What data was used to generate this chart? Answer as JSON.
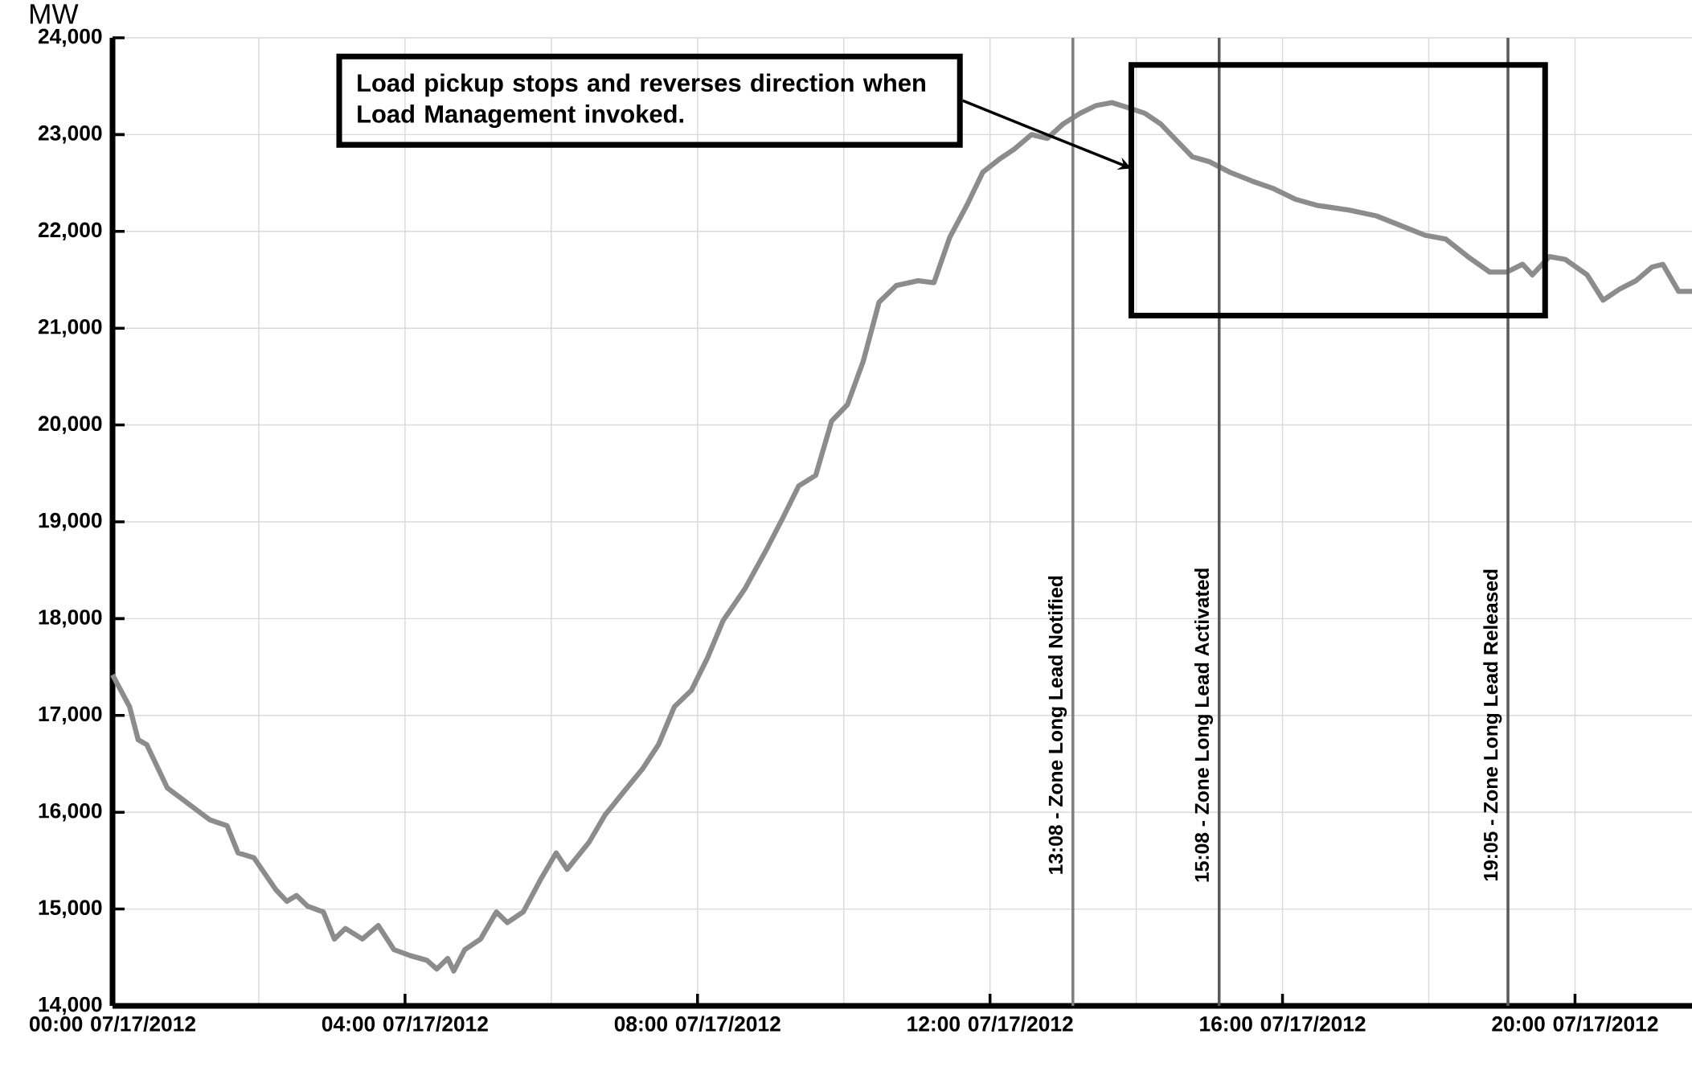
{
  "chart_data": {
    "type": "line",
    "ylabel": "MW",
    "x": [
      "2012-07-17T00:00",
      "2012-07-17T00:14",
      "2012-07-17T00:21",
      "2012-07-17T00:28",
      "2012-07-17T00:45",
      "2012-07-17T01:03",
      "2012-07-17T01:20",
      "2012-07-17T01:34",
      "2012-07-17T01:43",
      "2012-07-17T01:56",
      "2012-07-17T02:14",
      "2012-07-17T02:23",
      "2012-07-17T02:31",
      "2012-07-17T02:40",
      "2012-07-17T02:53",
      "2012-07-17T03:02",
      "2012-07-17T03:11",
      "2012-07-17T03:25",
      "2012-07-17T03:38",
      "2012-07-17T03:51",
      "2012-07-17T04:04",
      "2012-07-17T04:18",
      "2012-07-17T04:26",
      "2012-07-17T04:35",
      "2012-07-17T04:40",
      "2012-07-17T04:49",
      "2012-07-17T05:02",
      "2012-07-17T05:15",
      "2012-07-17T05:24",
      "2012-07-17T05:37",
      "2012-07-17T05:51",
      "2012-07-17T06:04",
      "2012-07-17T06:13",
      "2012-07-17T06:31",
      "2012-07-17T06:44",
      "2012-07-17T07:02",
      "2012-07-17T07:15",
      "2012-07-17T07:28",
      "2012-07-17T07:41",
      "2012-07-17T07:55",
      "2012-07-17T08:08",
      "2012-07-17T08:21",
      "2012-07-17T08:39",
      "2012-07-17T08:56",
      "2012-07-17T09:10",
      "2012-07-17T09:23",
      "2012-07-17T09:37",
      "2012-07-17T09:50",
      "2012-07-17T10:03",
      "2012-07-17T10:16",
      "2012-07-17T10:29",
      "2012-07-17T10:43",
      "2012-07-17T11:01",
      "2012-07-17T11:14",
      "2012-07-17T11:27",
      "2012-07-17T11:41",
      "2012-07-17T11:54",
      "2012-07-17T12:07",
      "2012-07-17T12:20",
      "2012-07-17T12:34",
      "2012-07-17T12:47",
      "2012-07-17T13:00",
      "2012-07-17T13:14",
      "2012-07-17T13:27",
      "2012-07-17T13:40",
      "2012-07-17T13:53",
      "2012-07-17T14:07",
      "2012-07-17T14:20",
      "2012-07-17T14:33",
      "2012-07-17T14:46",
      "2012-07-17T15:00",
      "2012-07-17T15:17",
      "2012-07-17T15:35",
      "2012-07-17T15:53",
      "2012-07-17T16:11",
      "2012-07-17T16:28",
      "2012-07-17T16:55",
      "2012-07-17T17:17",
      "2012-07-17T17:39",
      "2012-07-17T17:57",
      "2012-07-17T18:14",
      "2012-07-17T18:32",
      "2012-07-17T18:50",
      "2012-07-17T19:04",
      "2012-07-17T19:17",
      "2012-07-17T19:25",
      "2012-07-17T19:39",
      "2012-07-17T19:52",
      "2012-07-17T20:10",
      "2012-07-17T20:23",
      "2012-07-17T20:36",
      "2012-07-17T20:50",
      "2012-07-17T21:03",
      "2012-07-17T21:12",
      "2012-07-17T21:25",
      "2012-07-17T21:36"
    ],
    "series": [
      {
        "color": "#8c8c8c",
        "values": [
          17420,
          17090,
          16750,
          16700,
          16250,
          16080,
          15920,
          15860,
          15580,
          15530,
          15200,
          15080,
          15140,
          15030,
          14970,
          14690,
          14800,
          14690,
          14830,
          14580,
          14520,
          14470,
          14380,
          14490,
          14360,
          14580,
          14690,
          14970,
          14860,
          14970,
          15300,
          15580,
          15410,
          15690,
          15970,
          16250,
          16450,
          16700,
          17090,
          17260,
          17590,
          17980,
          18310,
          18700,
          19040,
          19370,
          19480,
          20040,
          20210,
          20660,
          21270,
          21440,
          21490,
          21470,
          21940,
          22270,
          22610,
          22740,
          22850,
          23000,
          22960,
          23110,
          23220,
          23300,
          23330,
          23280,
          23220,
          23110,
          22940,
          22770,
          22720,
          22610,
          22520,
          22440,
          22330,
          22270,
          22220,
          22160,
          22050,
          21960,
          21920,
          21740,
          21580,
          21580,
          21660,
          21550,
          21740,
          21710,
          21550,
          21290,
          21400,
          21490,
          21630,
          21660,
          21380,
          21380
        ]
      }
    ],
    "xlim": [
      "2012-07-17T00:00",
      "2012-07-17T21:36"
    ],
    "xticks": [
      {
        "value": "2012-07-17T00:00",
        "label": "00:00 07/17/2012"
      },
      {
        "value": "2012-07-17T04:00",
        "label": "04:00 07/17/2012"
      },
      {
        "value": "2012-07-17T08:00",
        "label": "08:00 07/17/2012"
      },
      {
        "value": "2012-07-17T12:00",
        "label": "12:00 07/17/2012"
      },
      {
        "value": "2012-07-17T16:00",
        "label": "16:00 07/17/2012"
      },
      {
        "value": "2012-07-17T20:00",
        "label": "20:00 07/17/2012"
      }
    ],
    "ylim": [
      14000,
      24000
    ],
    "yticks": [
      {
        "value": 14000,
        "label": "14,000"
      },
      {
        "value": 15000,
        "label": "15,000"
      },
      {
        "value": 16000,
        "label": "16,000"
      },
      {
        "value": 17000,
        "label": "17,000"
      },
      {
        "value": 18000,
        "label": "18,000"
      },
      {
        "value": 19000,
        "label": "19,000"
      },
      {
        "value": 20000,
        "label": "20,000"
      },
      {
        "value": 21000,
        "label": "21,000"
      },
      {
        "value": 22000,
        "label": "22,000"
      },
      {
        "value": 23000,
        "label": "23,000"
      },
      {
        "value": 24000,
        "label": "24,000"
      }
    ],
    "grid": true,
    "ref_lines": [
      {
        "axis": "x",
        "value": "2012-07-17T13:08",
        "label": "13:08 - Zone Long Lead Notified",
        "color": "#7f7f7f"
      },
      {
        "axis": "x",
        "value": "2012-07-17T15:08",
        "label": "15:08 - Zone Long Lead Activated",
        "color": "#595959"
      },
      {
        "axis": "x",
        "value": "2012-07-17T19:05",
        "label": "19:05 - Zone Long Lead Released",
        "color": "#595959"
      }
    ],
    "annotations": [
      "Load pickup stops and reverses direction when Load Management invoked."
    ]
  }
}
